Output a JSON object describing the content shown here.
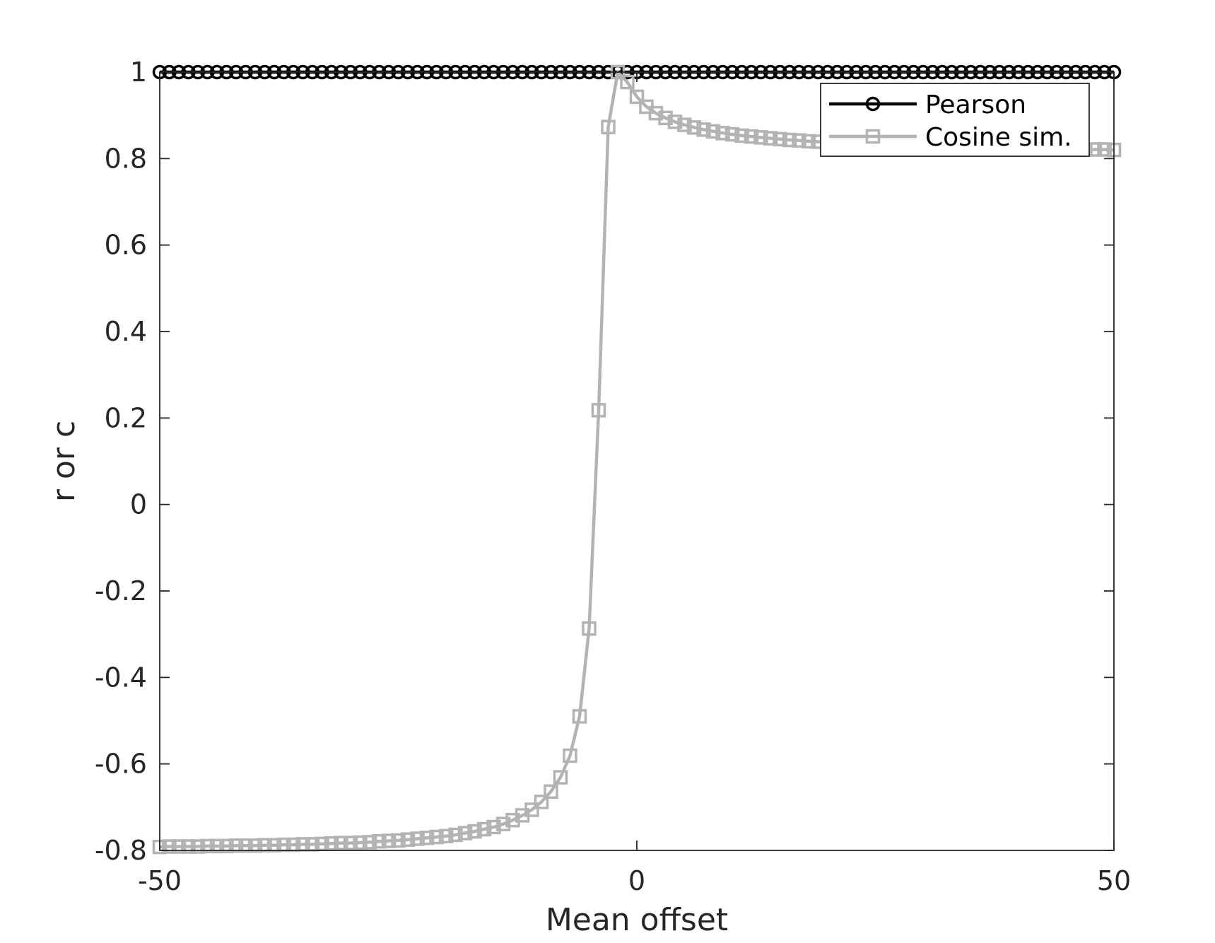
{
  "chart_data": {
    "type": "line",
    "xlabel": "Mean offset",
    "ylabel": "r or c",
    "xlim": [
      -50,
      50
    ],
    "ylim": [
      -0.8,
      1
    ],
    "xticks": [
      -50,
      0,
      50
    ],
    "xtick_labels": [
      "-50",
      "0",
      "50"
    ],
    "yticks": [
      -0.8,
      -0.6,
      -0.4,
      -0.2,
      0,
      0.2,
      0.4,
      0.6,
      0.8,
      1
    ],
    "ytick_labels": [
      "-0.8",
      "-0.6",
      "-0.4",
      "-0.2",
      "0",
      "0.2",
      "0.4",
      "0.6",
      "0.8",
      "1"
    ],
    "grid": false,
    "legend_position": "top-right",
    "series": [
      {
        "name": "Pearson",
        "color": "#000000",
        "marker": "circle",
        "x": [
          -50,
          -49,
          -48,
          -47,
          -46,
          -45,
          -44,
          -43,
          -42,
          -41,
          -40,
          -39,
          -38,
          -37,
          -36,
          -35,
          -34,
          -33,
          -32,
          -31,
          -30,
          -29,
          -28,
          -27,
          -26,
          -25,
          -24,
          -23,
          -22,
          -21,
          -20,
          -19,
          -18,
          -17,
          -16,
          -15,
          -14,
          -13,
          -12,
          -11,
          -10,
          -9,
          -8,
          -7,
          -6,
          -5,
          -4,
          -3,
          -2,
          -1,
          0,
          1,
          2,
          3,
          4,
          5,
          6,
          7,
          8,
          9,
          10,
          11,
          12,
          13,
          14,
          15,
          16,
          17,
          18,
          19,
          20,
          21,
          22,
          23,
          24,
          25,
          26,
          27,
          28,
          29,
          30,
          31,
          32,
          33,
          34,
          35,
          36,
          37,
          38,
          39,
          40,
          41,
          42,
          43,
          44,
          45,
          46,
          47,
          48,
          49,
          50
        ],
        "y": [
          1,
          1,
          1,
          1,
          1,
          1,
          1,
          1,
          1,
          1,
          1,
          1,
          1,
          1,
          1,
          1,
          1,
          1,
          1,
          1,
          1,
          1,
          1,
          1,
          1,
          1,
          1,
          1,
          1,
          1,
          1,
          1,
          1,
          1,
          1,
          1,
          1,
          1,
          1,
          1,
          1,
          1,
          1,
          1,
          1,
          1,
          1,
          1,
          1,
          1,
          1,
          1,
          1,
          1,
          1,
          1,
          1,
          1,
          1,
          1,
          1,
          1,
          1,
          1,
          1,
          1,
          1,
          1,
          1,
          1,
          1,
          1,
          1,
          1,
          1,
          1,
          1,
          1,
          1,
          1,
          1,
          1,
          1,
          1,
          1,
          1,
          1,
          1,
          1,
          1,
          1,
          1,
          1,
          1,
          1,
          1,
          1,
          1,
          1,
          1,
          1
        ]
      },
      {
        "name": "Cosine sim.",
        "color": "#b3b3b3",
        "marker": "square",
        "x": [
          -50,
          -49,
          -48,
          -47,
          -46,
          -45,
          -44,
          -43,
          -42,
          -41,
          -40,
          -39,
          -38,
          -37,
          -36,
          -35,
          -34,
          -33,
          -32,
          -31,
          -30,
          -29,
          -28,
          -27,
          -26,
          -25,
          -24,
          -23,
          -22,
          -21,
          -20,
          -19,
          -18,
          -17,
          -16,
          -15,
          -14,
          -13,
          -12,
          -11,
          -10,
          -9,
          -8,
          -7,
          -6,
          -5,
          -4,
          -3,
          -2,
          -1,
          0,
          1,
          2,
          3,
          4,
          5,
          6,
          7,
          8,
          9,
          10,
          11,
          12,
          13,
          14,
          15,
          16,
          17,
          18,
          19,
          20,
          21,
          22,
          23,
          24,
          25,
          26,
          27,
          28,
          29,
          30,
          31,
          32,
          33,
          34,
          35,
          36,
          37,
          38,
          39,
          40,
          41,
          42,
          43,
          44,
          45,
          46,
          47,
          48,
          49,
          50
        ],
        "y": [
          -0.792,
          -0.791,
          -0.791,
          -0.791,
          -0.791,
          -0.79,
          -0.79,
          -0.79,
          -0.789,
          -0.789,
          -0.789,
          -0.788,
          -0.788,
          -0.787,
          -0.787,
          -0.786,
          -0.786,
          -0.785,
          -0.784,
          -0.783,
          -0.783,
          -0.782,
          -0.781,
          -0.779,
          -0.778,
          -0.777,
          -0.775,
          -0.773,
          -0.771,
          -0.769,
          -0.767,
          -0.764,
          -0.76,
          -0.756,
          -0.751,
          -0.746,
          -0.739,
          -0.73,
          -0.719,
          -0.706,
          -0.688,
          -0.664,
          -0.631,
          -0.581,
          -0.49,
          -0.287,
          0.218,
          0.873,
          1.0,
          0.977,
          0.943,
          0.92,
          0.905,
          0.894,
          0.885,
          0.878,
          0.872,
          0.867,
          0.863,
          0.859,
          0.856,
          0.853,
          0.851,
          0.849,
          0.847,
          0.845,
          0.843,
          0.842,
          0.84,
          0.839,
          0.838,
          0.837,
          0.836,
          0.835,
          0.834,
          0.833,
          0.832,
          0.831,
          0.831,
          0.83,
          0.829,
          0.829,
          0.828,
          0.827,
          0.827,
          0.826,
          0.826,
          0.825,
          0.825,
          0.824,
          0.824,
          0.824,
          0.823,
          0.823,
          0.822,
          0.822,
          0.822,
          0.821,
          0.821,
          0.821,
          0.82
        ]
      }
    ]
  }
}
